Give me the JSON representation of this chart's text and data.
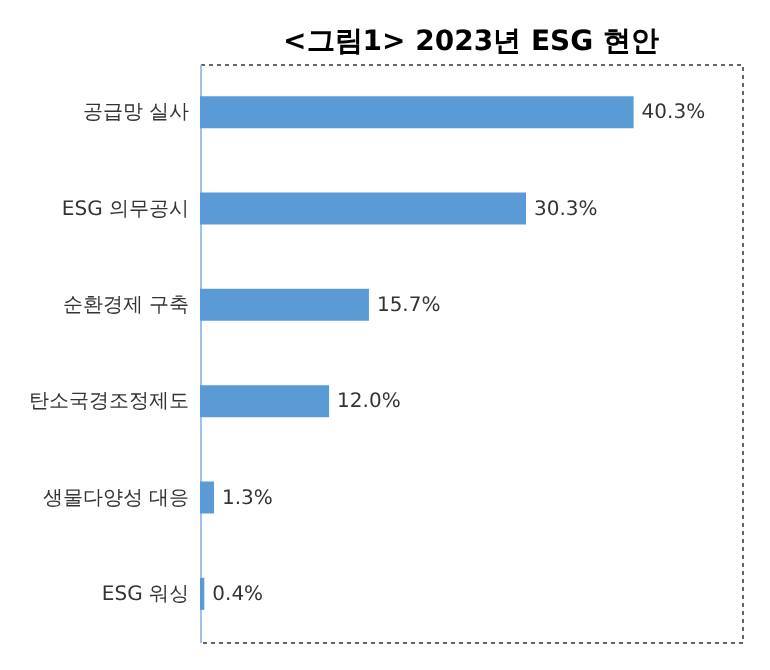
{
  "chart_data": {
    "type": "bar",
    "orientation": "horizontal",
    "title": "<그림1> 2023년 ESG 현안",
    "categories": [
      "공급망 실사",
      "ESG 의무공시",
      "순환경제 구축",
      "탄소국경조정제도",
      "생물다양성 대응",
      "ESG 워싱"
    ],
    "values": [
      40.3,
      30.3,
      15.7,
      12.0,
      1.3,
      0.4
    ],
    "value_labels": [
      "40.3%",
      "30.3%",
      "15.7%",
      "12.0%",
      "1.3%",
      "0.4%"
    ],
    "color": "#5b9bd5",
    "grid": false,
    "tick_labels": "y"
  }
}
